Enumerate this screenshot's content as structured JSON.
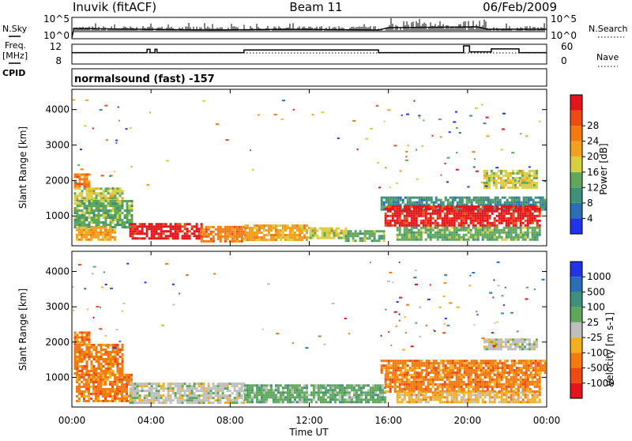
{
  "header": {
    "station": "Inuvik (fitACF)",
    "beam": "Beam 11",
    "date": "06/Feb/2009"
  },
  "left_labels": {
    "nsky": "N.Sky",
    "freq_line1": "Freq.",
    "freq_line2": "[MHz]",
    "cpid": "CPID"
  },
  "right_labels": {
    "nsearch": "N.Search",
    "nave": "Nave"
  },
  "cpid_text": "normalsound (fast) -157",
  "chart_data": [
    {
      "type": "line",
      "name": "noise-panel",
      "ylabel": "N.Sky",
      "left_ticks": [
        "10^5",
        "10^0"
      ],
      "right_ticks": [
        "10^5",
        "10^0"
      ],
      "right_label": "N.Search"
    },
    {
      "type": "line",
      "name": "freq-nave-panel",
      "ylabel": "Freq. [MHz]",
      "left_ticks": [
        "12",
        "8"
      ],
      "right_ticks": [
        "60",
        "0"
      ],
      "right_label": "Nave",
      "freq_steps": [
        {
          "t": 0,
          "v": 10.4
        },
        {
          "t": 3.8,
          "v": 10.4
        },
        {
          "t": 3.8,
          "v": 11.3
        },
        {
          "t": 3.95,
          "v": 11.3
        },
        {
          "t": 3.95,
          "v": 10.4
        },
        {
          "t": 4.2,
          "v": 10.4
        },
        {
          "t": 4.2,
          "v": 11.3
        },
        {
          "t": 4.3,
          "v": 11.3
        },
        {
          "t": 4.3,
          "v": 10.4
        },
        {
          "t": 8.7,
          "v": 10.4
        },
        {
          "t": 8.7,
          "v": 11.1
        },
        {
          "t": 15.5,
          "v": 11.1
        },
        {
          "t": 15.5,
          "v": 10.4
        },
        {
          "t": 19.8,
          "v": 10.4
        },
        {
          "t": 19.8,
          "v": 12.2
        },
        {
          "t": 20.1,
          "v": 12.2
        },
        {
          "t": 20.1,
          "v": 10.6
        },
        {
          "t": 21.2,
          "v": 10.6
        },
        {
          "t": 21.2,
          "v": 11.4
        },
        {
          "t": 22.6,
          "v": 11.4
        },
        {
          "t": 22.6,
          "v": 10.4
        },
        {
          "t": 24,
          "v": 10.4
        }
      ]
    },
    {
      "type": "heatmap",
      "name": "power",
      "ylabel": "Slant Range [km]",
      "yticks": [
        1000,
        2000,
        3000,
        4000
      ],
      "ylim": [
        180,
        4550
      ],
      "xlim": [
        0,
        24
      ],
      "colorbar_label": "Power [dB]",
      "colorbar_ticks": [
        "4",
        "8",
        "12",
        "16",
        "20",
        "24",
        "28"
      ],
      "colors": [
        "#1f35e6",
        "#2a6fb5",
        "#3f8f7a",
        "#5fa85a",
        "#d8d044",
        "#f2a020",
        "#f27a10",
        "#ee4a14",
        "#e4141a"
      ],
      "regions": [
        {
          "t0": 0.1,
          "t1": 2.6,
          "r0": 1450,
          "r1": 1800,
          "c": 4
        },
        {
          "t0": 0.1,
          "t1": 0.9,
          "r0": 1800,
          "r1": 2200,
          "c": 6
        },
        {
          "t0": 0.1,
          "t1": 3.0,
          "r0": 700,
          "r1": 1450,
          "c": 3
        },
        {
          "t0": 0.2,
          "t1": 2.2,
          "r0": 300,
          "r1": 700,
          "c": 5
        },
        {
          "t0": 2.9,
          "t1": 6.5,
          "r0": 350,
          "r1": 800,
          "c": 8
        },
        {
          "t0": 6.5,
          "t1": 8.7,
          "r0": 300,
          "r1": 720,
          "c": 6
        },
        {
          "t0": 8.7,
          "t1": 12.0,
          "r0": 300,
          "r1": 760,
          "c": 5
        },
        {
          "t0": 12.0,
          "t1": 13.8,
          "r0": 380,
          "r1": 680,
          "c": 4
        },
        {
          "t0": 13.8,
          "t1": 15.8,
          "r0": 300,
          "r1": 600,
          "c": 3
        },
        {
          "t0": 15.6,
          "t1": 23.9,
          "r0": 1150,
          "r1": 1550,
          "c": 2
        },
        {
          "t0": 15.8,
          "t1": 23.6,
          "r0": 700,
          "r1": 1300,
          "c": 8
        },
        {
          "t0": 16.4,
          "t1": 23.6,
          "r0": 300,
          "r1": 700,
          "c": 3
        },
        {
          "t0": 20.8,
          "t1": 23.5,
          "r0": 1800,
          "r1": 2300,
          "c": 4
        }
      ]
    },
    {
      "type": "heatmap",
      "name": "velocity",
      "ylabel": "Slant Range [km]",
      "yticks": [
        1000,
        2000,
        3000,
        4000
      ],
      "ylim": [
        180,
        4550
      ],
      "xlim": [
        0,
        24
      ],
      "colorbar_label": "Velocity [m s-1]",
      "colorbar_ticks": [
        "1000",
        "500",
        "100",
        "25",
        "-25",
        "-100",
        "-500",
        "-1000"
      ],
      "colors": [
        "#1f35e6",
        "#2a6fb5",
        "#3f8f7a",
        "#5fa85a",
        "#bfbfbf",
        "#f2b020",
        "#f27a10",
        "#ee4a14",
        "#e4141a"
      ],
      "regions": [
        {
          "t0": 0.1,
          "t1": 2.6,
          "r0": 1100,
          "r1": 1950,
          "c": 6
        },
        {
          "t0": 0.1,
          "t1": 0.9,
          "r0": 1950,
          "r1": 2300,
          "c": 6
        },
        {
          "t0": 0.2,
          "t1": 3.0,
          "r0": 300,
          "r1": 1100,
          "c": 6
        },
        {
          "t0": 2.9,
          "t1": 8.7,
          "r0": 300,
          "r1": 850,
          "c": 4
        },
        {
          "t0": 8.7,
          "t1": 15.8,
          "r0": 300,
          "r1": 800,
          "c": 3
        },
        {
          "t0": 15.6,
          "t1": 23.9,
          "r0": 1100,
          "r1": 1500,
          "c": 6
        },
        {
          "t0": 15.8,
          "t1": 23.6,
          "r0": 600,
          "r1": 1100,
          "c": 6
        },
        {
          "t0": 16.4,
          "t1": 23.6,
          "r0": 300,
          "r1": 600,
          "c": 5
        },
        {
          "t0": 20.8,
          "t1": 23.5,
          "r0": 1800,
          "r1": 2100,
          "c": 4
        }
      ]
    }
  ],
  "x_axis": {
    "ticks": [
      "00:00",
      "04:00",
      "08:00",
      "12:00",
      "16:00",
      "20:00",
      "00:00"
    ],
    "label": "Time UT"
  }
}
